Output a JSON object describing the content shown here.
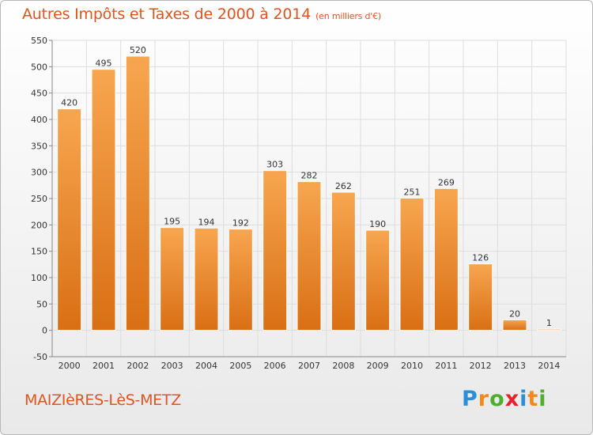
{
  "colors": {
    "accent": "#e0541e",
    "bar_top": "#f7a650",
    "bar_bottom": "#d96f14",
    "grid": "#dddddd"
  },
  "header": {
    "title": "Autres Impôts et Taxes de 2000 à 2014",
    "subtitle": "(en milliers d'€)"
  },
  "footer": {
    "town": "MAIZIèRES-LèS-METZ",
    "brand_letters": [
      {
        "ch": "P",
        "color": "#2a8fd6"
      },
      {
        "ch": "r",
        "color": "#f08a1c"
      },
      {
        "ch": "o",
        "color": "#4caf2e"
      },
      {
        "ch": "x",
        "color": "#e4232a"
      },
      {
        "ch": "i",
        "color": "#2a8fd6"
      },
      {
        "ch": "t",
        "color": "#f08a1c"
      },
      {
        "ch": "i",
        "color": "#4caf2e"
      }
    ]
  },
  "chart_data": {
    "type": "bar",
    "title": "Autres Impôts et Taxes de 2000 à 2014",
    "subtitle": "(en milliers d'€)",
    "xlabel": "",
    "ylabel": "",
    "categories": [
      "2000",
      "2001",
      "2002",
      "2003",
      "2004",
      "2005",
      "2006",
      "2007",
      "2008",
      "2009",
      "2010",
      "2011",
      "2012",
      "2013",
      "2014"
    ],
    "values": [
      420,
      495,
      520,
      195,
      194,
      192,
      303,
      282,
      262,
      190,
      251,
      269,
      126,
      20,
      1
    ],
    "ylim": [
      -50,
      550
    ],
    "yticks": [
      -50,
      0,
      50,
      100,
      150,
      200,
      250,
      300,
      350,
      400,
      450,
      500,
      550
    ],
    "grid": true,
    "legend": "none"
  }
}
